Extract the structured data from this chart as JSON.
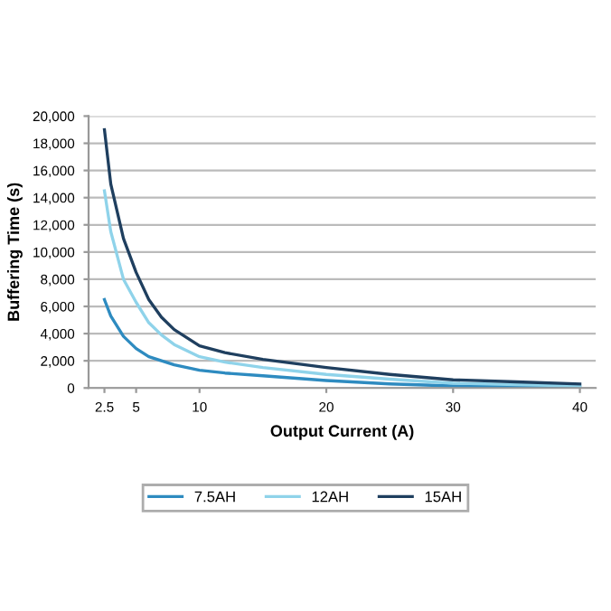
{
  "chart_data": {
    "type": "line",
    "xlabel": "Output Current (A)",
    "ylabel": "Buffering Time (s)",
    "x": [
      2.5,
      3,
      4,
      5,
      6,
      7,
      8,
      10,
      12,
      15,
      20,
      25,
      30,
      35,
      40
    ],
    "series": [
      {
        "name": "7.5AH",
        "color": "#2e8bc0",
        "values": [
          6500,
          5300,
          3800,
          2900,
          2300,
          2000,
          1700,
          1300,
          1100,
          900,
          550,
          300,
          150,
          100,
          50
        ]
      },
      {
        "name": "12AH",
        "color": "#8fd3ea",
        "values": [
          14500,
          11500,
          8000,
          6300,
          4800,
          3900,
          3200,
          2300,
          1900,
          1500,
          1000,
          650,
          350,
          250,
          150
        ]
      },
      {
        "name": "15AH",
        "color": "#1f3f5f",
        "values": [
          19000,
          15000,
          11000,
          8500,
          6500,
          5200,
          4300,
          3100,
          2600,
          2100,
          1500,
          1000,
          600,
          450,
          300
        ]
      }
    ],
    "xlim": [
      1.25,
      41.25
    ],
    "xticks": [
      2.5,
      5,
      10,
      20,
      30,
      40
    ],
    "ylim": [
      0,
      20000
    ],
    "yticks": [
      {
        "value": 0,
        "label": "0"
      },
      {
        "value": 2000,
        "label": "2,000"
      },
      {
        "value": 4000,
        "label": "4,000"
      },
      {
        "value": 6000,
        "label": "6,000"
      },
      {
        "value": 8000,
        "label": "8,000"
      },
      {
        "value": 10000,
        "label": "10,000"
      },
      {
        "value": 12000,
        "label": "12,000"
      },
      {
        "value": 14000,
        "label": "14,000"
      },
      {
        "value": 16000,
        "label": "16,000"
      },
      {
        "value": 18000,
        "label": "18,000"
      },
      {
        "value": 20000,
        "label": "20,000"
      }
    ],
    "grid": "y",
    "legend": "bottom",
    "marker": "none",
    "line_style": "solid"
  }
}
